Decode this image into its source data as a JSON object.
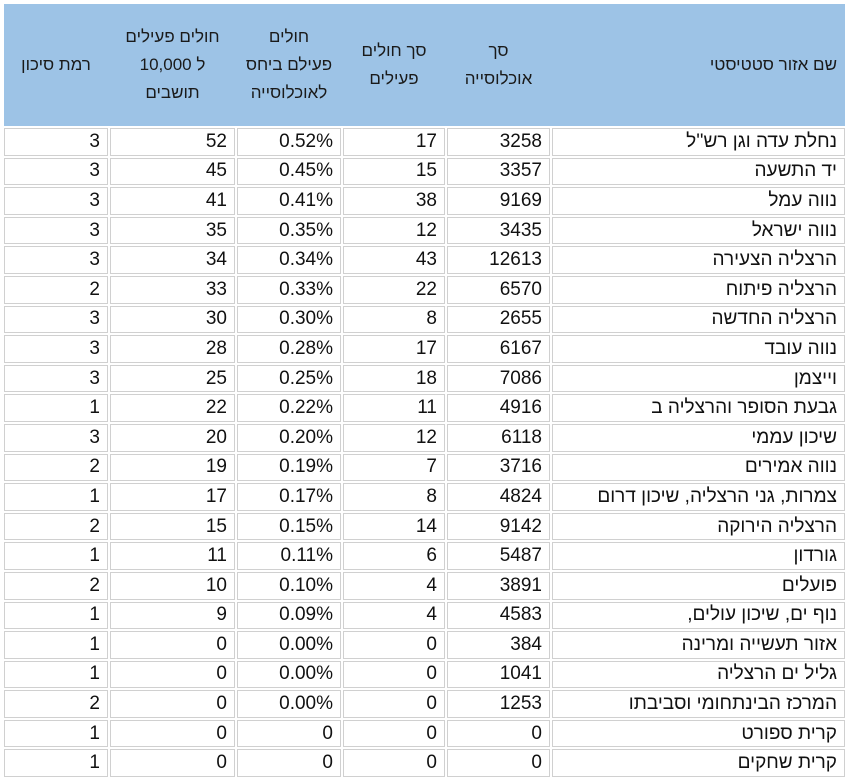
{
  "colors": {
    "header_bg": "#9DC3E6",
    "cell_border": "#D0D0D0",
    "cell_bg": "#FFFFFF",
    "text": "#111111"
  },
  "table": {
    "header": {
      "name": "שם אזור סטטיסטי",
      "population": "סך\nאוכלוסייה",
      "active": "סך חולים\nפעילים",
      "pct": "חולים\nפעילם ביחס\nלאוכלוסייה",
      "per10k": "חולים פעילים\nל 10,000\nתושבים",
      "risk": "רמת סיכון"
    },
    "rows": [
      {
        "name": "נחלת עדה וגן רש''ל",
        "population": "3258",
        "active": "17",
        "pct": "0.52%",
        "per10k": "52",
        "risk": "3"
      },
      {
        "name": "יד התשעה",
        "population": "3357",
        "active": "15",
        "pct": "0.45%",
        "per10k": "45",
        "risk": "3"
      },
      {
        "name": "נווה עמל",
        "population": "9169",
        "active": "38",
        "pct": "0.41%",
        "per10k": "41",
        "risk": "3"
      },
      {
        "name": "נווה ישראל",
        "population": "3435",
        "active": "12",
        "pct": "0.35%",
        "per10k": "35",
        "risk": "3"
      },
      {
        "name": "הרצליה הצעירה",
        "population": "12613",
        "active": "43",
        "pct": "0.34%",
        "per10k": "34",
        "risk": "3"
      },
      {
        "name": "הרצליה פיתוח",
        "population": "6570",
        "active": "22",
        "pct": "0.33%",
        "per10k": "33",
        "risk": "2"
      },
      {
        "name": "הרצליה החדשה",
        "population": "2655",
        "active": "8",
        "pct": "0.30%",
        "per10k": "30",
        "risk": "3"
      },
      {
        "name": "נווה עובד",
        "population": "6167",
        "active": "17",
        "pct": "0.28%",
        "per10k": "28",
        "risk": "3"
      },
      {
        "name": "וייצמן",
        "population": "7086",
        "active": "18",
        "pct": "0.25%",
        "per10k": "25",
        "risk": "3"
      },
      {
        "name": "גבעת הסופר והרצליה ב",
        "population": "4916",
        "active": "11",
        "pct": "0.22%",
        "per10k": "22",
        "risk": "1"
      },
      {
        "name": "שיכון עממי",
        "population": "6118",
        "active": "12",
        "pct": "0.20%",
        "per10k": "20",
        "risk": "3"
      },
      {
        "name": "נווה אמירים",
        "population": "3716",
        "active": "7",
        "pct": "0.19%",
        "per10k": "19",
        "risk": "2"
      },
      {
        "name": "צמרות, גני הרצליה, שיכון דרום",
        "population": "4824",
        "active": "8",
        "pct": "0.17%",
        "per10k": "17",
        "risk": "1"
      },
      {
        "name": "הרצליה הירוקה",
        "population": "9142",
        "active": "14",
        "pct": "0.15%",
        "per10k": "15",
        "risk": "2"
      },
      {
        "name": "גורדון",
        "population": "5487",
        "active": "6",
        "pct": "0.11%",
        "per10k": "11",
        "risk": "1"
      },
      {
        "name": "פועלים",
        "population": "3891",
        "active": "4",
        "pct": "0.10%",
        "per10k": "10",
        "risk": "2"
      },
      {
        "name": "נוף ים, שיכון עולים,",
        "population": "4583",
        "active": "4",
        "pct": "0.09%",
        "per10k": "9",
        "risk": "1"
      },
      {
        "name": "אזור תעשייה ומרינה",
        "population": "384",
        "active": "0",
        "pct": "0.00%",
        "per10k": "0",
        "risk": "1"
      },
      {
        "name": "גליל ים הרצליה",
        "population": "1041",
        "active": "0",
        "pct": "0.00%",
        "per10k": "0",
        "risk": "1"
      },
      {
        "name": "המרכז הבינתחומי וסביבתו",
        "population": "1253",
        "active": "0",
        "pct": "0.00%",
        "per10k": "0",
        "risk": "2"
      },
      {
        "name": "קרית ספורט",
        "population": "0",
        "active": "0",
        "pct": "0",
        "per10k": "0",
        "risk": "1"
      },
      {
        "name": "קרית שחקים",
        "population": "0",
        "active": "0",
        "pct": "0",
        "per10k": "0",
        "risk": "1"
      }
    ]
  }
}
